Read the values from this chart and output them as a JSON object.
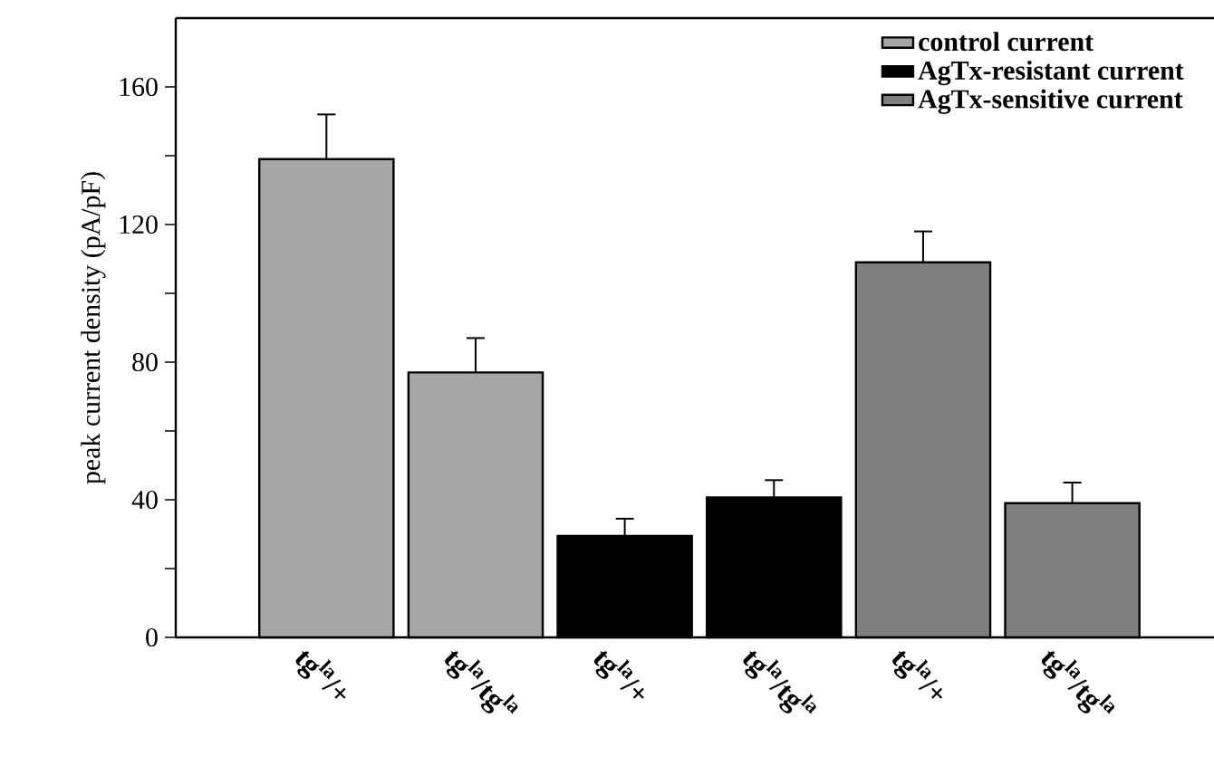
{
  "chart_data": {
    "type": "bar",
    "ylabel": "peak current density (pA/pF)",
    "categories": [
      "tg$^{la}$/+",
      "tg$^{la}$/tg$^{la}$",
      "tg$^{la}$/+",
      "tg$^{la}$/tg$^{la}$",
      "tg$^{la}$/+",
      "tg$^{la}$/tg$^{la}$"
    ],
    "series": [
      {
        "name": "control current",
        "color": "#a6a6a6",
        "values": [
          139,
          77,
          null,
          null,
          null,
          null
        ],
        "errors": [
          13,
          10,
          null,
          null,
          null,
          null
        ]
      },
      {
        "name": "AgTx-resistant current",
        "color": "#000000",
        "values": [
          null,
          null,
          29.5,
          40.7,
          null,
          null
        ],
        "errors": [
          null,
          null,
          5,
          5,
          null,
          null
        ]
      },
      {
        "name": "AgTx-sensitive current",
        "color": "#7f7f7f",
        "values": [
          null,
          null,
          null,
          null,
          109,
          39
        ],
        "errors": [
          null,
          null,
          null,
          null,
          9,
          6
        ]
      }
    ],
    "ylim": [
      0,
      180
    ],
    "yticks": [
      0,
      {
        "value": 20,
        "label": null
      },
      40,
      {
        "value": 60,
        "label": null
      },
      80,
      {
        "value": 100,
        "label": null
      },
      120,
      {
        "value": 140,
        "label": null
      },
      160
    ],
    "legend": "top right",
    "grid": false
  }
}
